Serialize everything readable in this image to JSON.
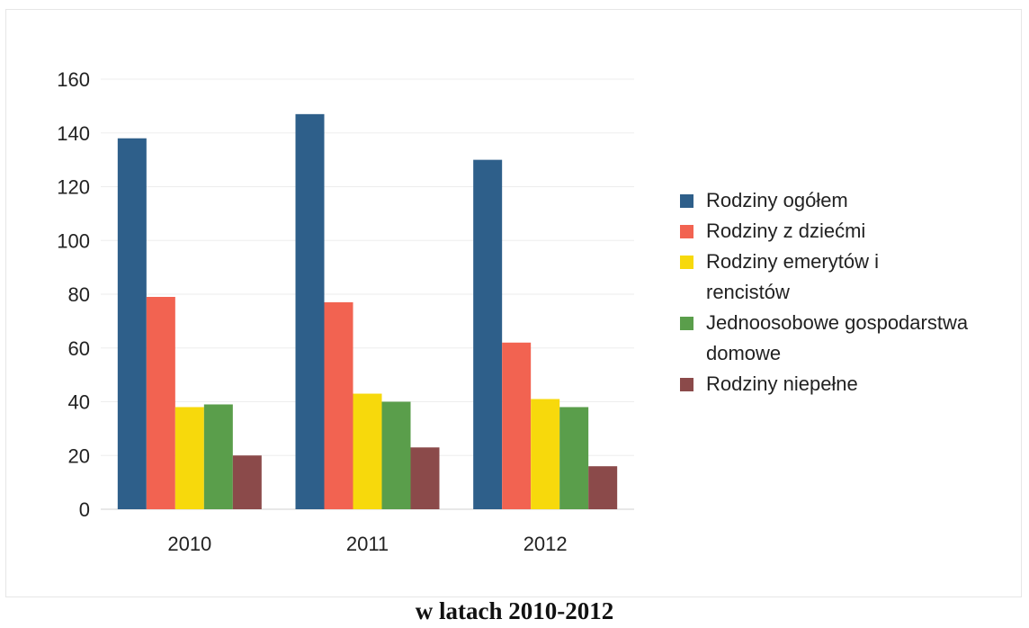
{
  "caption": "w latach 2010-2012",
  "chart_data": {
    "type": "bar",
    "categories": [
      "2010",
      "2011",
      "2012"
    ],
    "series": [
      {
        "name": "Rodziny ogółem",
        "values": [
          138,
          147,
          130
        ],
        "color": "#2e5f8a"
      },
      {
        "name": "Rodziny z dziećmi",
        "values": [
          79,
          77,
          62
        ],
        "color": "#f26351"
      },
      {
        "name": "Rodziny emerytów i rencistów",
        "legend_lines": [
          "Rodziny emerytów i",
          "rencistów"
        ],
        "values": [
          38,
          43,
          41
        ],
        "color": "#f7d90c"
      },
      {
        "name": "Jednoosobowe gospodarstwa domowe",
        "legend_lines": [
          "Jednoosobowe gospodarstwa",
          "domowe"
        ],
        "values": [
          39,
          40,
          38
        ],
        "color": "#5a9e4b"
      },
      {
        "name": "Rodziny niepełne",
        "values": [
          20,
          23,
          16
        ],
        "color": "#8b4a4a"
      }
    ],
    "yticks": [
      "0",
      "20",
      "40",
      "60",
      "80",
      "100",
      "120",
      "140",
      "160"
    ],
    "ylim": [
      0,
      160
    ],
    "grid": true,
    "legend_position": "right"
  }
}
